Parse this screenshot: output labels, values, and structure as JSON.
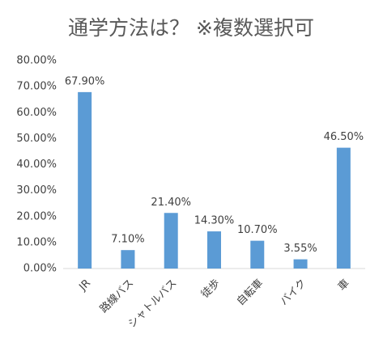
{
  "chart_data": {
    "type": "bar",
    "title": "通学方法は？ ※複数選択可",
    "categories": [
      "JR",
      "路線バス",
      "シャトルバス",
      "徒歩",
      "自転車",
      "バイク",
      "車"
    ],
    "values": [
      67.9,
      7.1,
      21.4,
      14.3,
      10.7,
      3.55,
      46.5
    ],
    "value_labels": [
      "67.90%",
      "7.10%",
      "21.40%",
      "14.30%",
      "10.70%",
      "3.55%",
      "46.50%"
    ],
    "color": "#5b9bd5",
    "ylim": [
      0,
      80
    ],
    "yticks": [
      {
        "value": 0,
        "label": "0.00%"
      },
      {
        "value": 10,
        "label": "10.00%"
      },
      {
        "value": 20,
        "label": "20.00%"
      },
      {
        "value": 30,
        "label": "30.00%"
      },
      {
        "value": 40,
        "label": "40.00%"
      },
      {
        "value": 50,
        "label": "50.00%"
      },
      {
        "value": 60,
        "label": "60.00%"
      },
      {
        "value": 70,
        "label": "70.00%"
      },
      {
        "value": 80,
        "label": "80.00%"
      }
    ],
    "grid": false
  }
}
